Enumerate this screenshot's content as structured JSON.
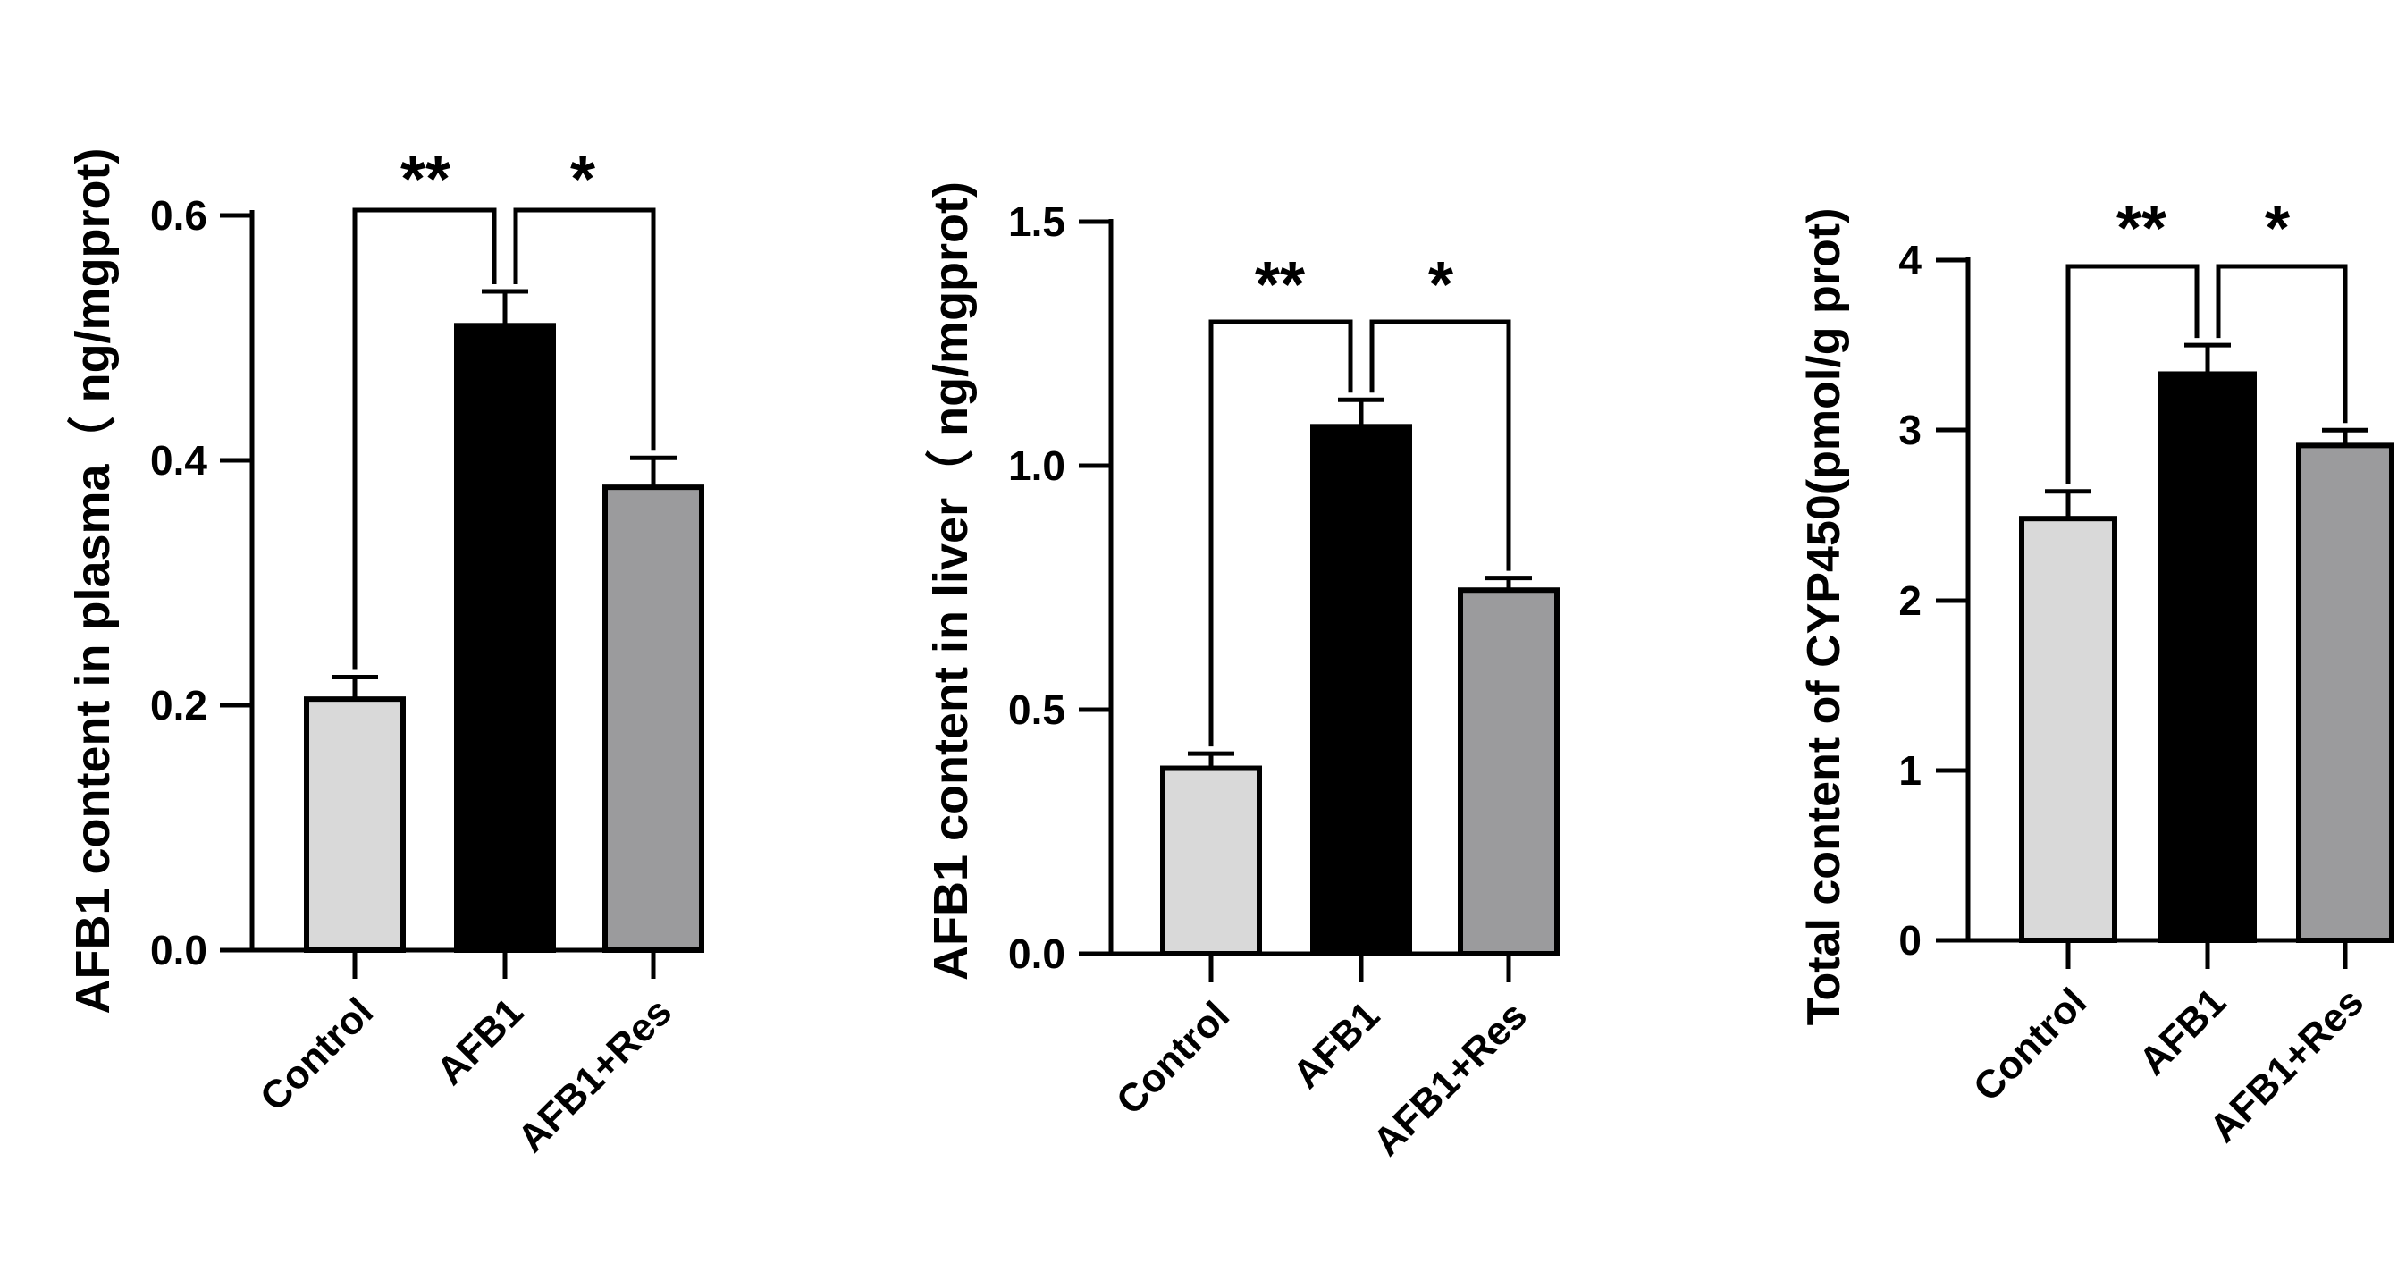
{
  "colors": {
    "control": "#d9d9d9",
    "afb1": "#000000",
    "afb1_res": "#9b9b9d",
    "axis": "#000000"
  },
  "chart_data": [
    {
      "type": "bar",
      "categories": [
        "Control",
        "AFB1",
        "AFB1+Res"
      ],
      "values": [
        0.205,
        0.51,
        0.378
      ],
      "errors": [
        0.018,
        0.028,
        0.024
      ],
      "ylabel": "AFB1 content in plasma（ ng/mgprot)",
      "ylim": [
        0,
        0.6
      ],
      "yticks": [
        "0.0",
        "0.2",
        "0.4",
        "0.6"
      ],
      "significance": [
        {
          "from": 0,
          "to": 1,
          "label": "**"
        },
        {
          "from": 1,
          "to": 2,
          "label": "*"
        }
      ]
    },
    {
      "type": "bar",
      "categories": [
        "Control",
        "AFB1",
        "AFB1+Res"
      ],
      "values": [
        0.38,
        1.08,
        0.745
      ],
      "errors": [
        0.03,
        0.055,
        0.025
      ],
      "ylabel": "AFB1 content in liver（ ng/mgprot)",
      "ylim": [
        0,
        1.5
      ],
      "yticks": [
        "0.0",
        "0.5",
        "1.0",
        "1.5"
      ],
      "significance": [
        {
          "from": 0,
          "to": 1,
          "label": "**"
        },
        {
          "from": 1,
          "to": 2,
          "label": "*"
        }
      ]
    },
    {
      "type": "bar",
      "categories": [
        "Control",
        "AFB1",
        "AFB1+Res"
      ],
      "values": [
        2.48,
        3.33,
        2.91
      ],
      "errors": [
        0.16,
        0.17,
        0.09
      ],
      "ylabel": "Total content of CYP450(pmol/g prot)",
      "ylim": [
        0,
        4
      ],
      "yticks": [
        "0",
        "1",
        "2",
        "3",
        "4"
      ],
      "significance": [
        {
          "from": 0,
          "to": 1,
          "label": "**"
        },
        {
          "from": 1,
          "to": 2,
          "label": "*"
        }
      ]
    }
  ]
}
